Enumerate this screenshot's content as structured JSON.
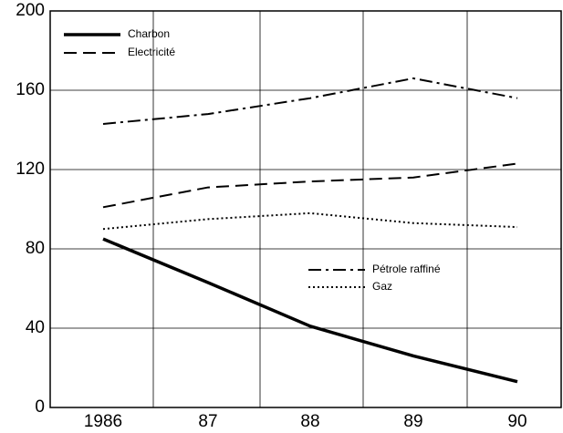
{
  "chart_data": {
    "type": "line",
    "categories": [
      "1986",
      "87",
      "88",
      "89",
      "90"
    ],
    "series": [
      {
        "name": "Charbon",
        "color": "#000000",
        "style": "solid",
        "values": [
          85,
          63,
          41,
          26,
          13
        ]
      },
      {
        "name": "Electricité",
        "color": "#000000",
        "style": "dashed",
        "values": [
          101,
          111,
          114,
          116,
          123
        ]
      },
      {
        "name": "Pétrole raffiné",
        "color": "#000000",
        "style": "dashdot",
        "values": [
          143,
          148,
          156,
          166,
          156
        ]
      },
      {
        "name": "Gaz",
        "color": "#000000",
        "style": "dotted",
        "values": [
          90,
          95,
          98,
          93,
          91
        ]
      }
    ],
    "ylim": [
      0,
      200
    ],
    "yticks": [
      0,
      40,
      80,
      120,
      160,
      200
    ],
    "grid": true
  }
}
